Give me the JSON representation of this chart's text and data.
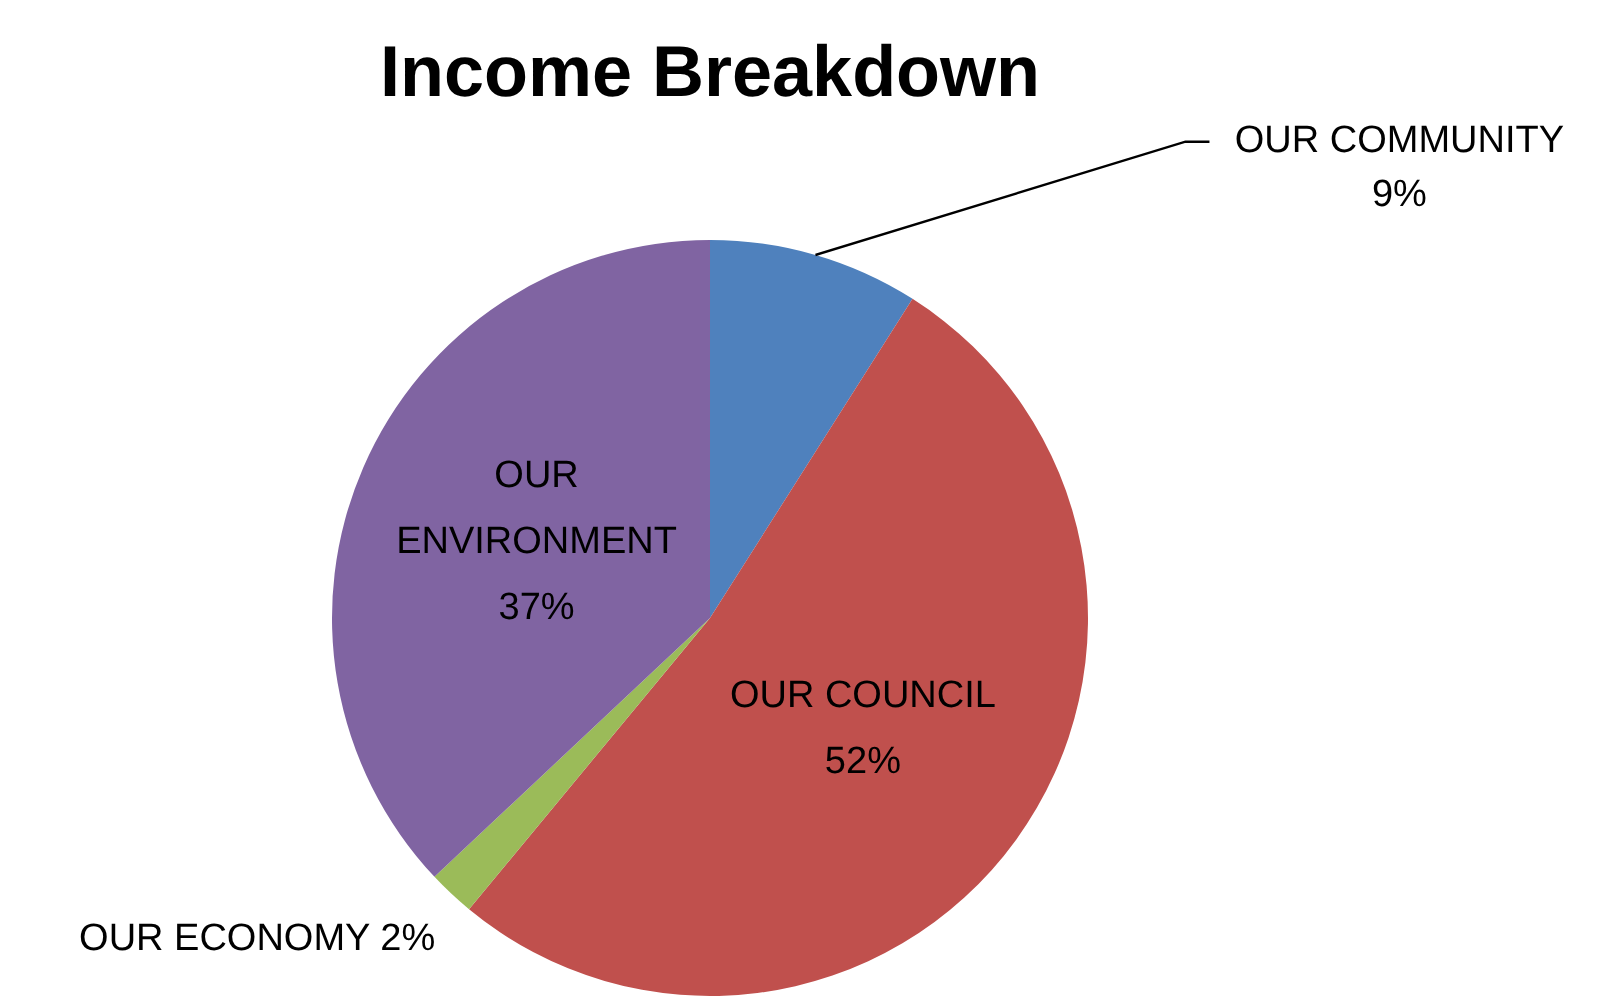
{
  "chart_data": {
    "type": "pie",
    "title": "Income Breakdown",
    "categories": [
      "OUR COMMUNITY",
      "OUR COUNCIL",
      "OUR ECONOMY",
      "OUR ENVIRONMENT"
    ],
    "values": [
      9,
      52,
      2,
      37
    ],
    "colors": [
      "#4f81bd",
      "#c0504d",
      "#9bbb59",
      "#8064a2"
    ],
    "value_labels": [
      "9%",
      "52%",
      "2%",
      "37%"
    ],
    "legend": false
  }
}
